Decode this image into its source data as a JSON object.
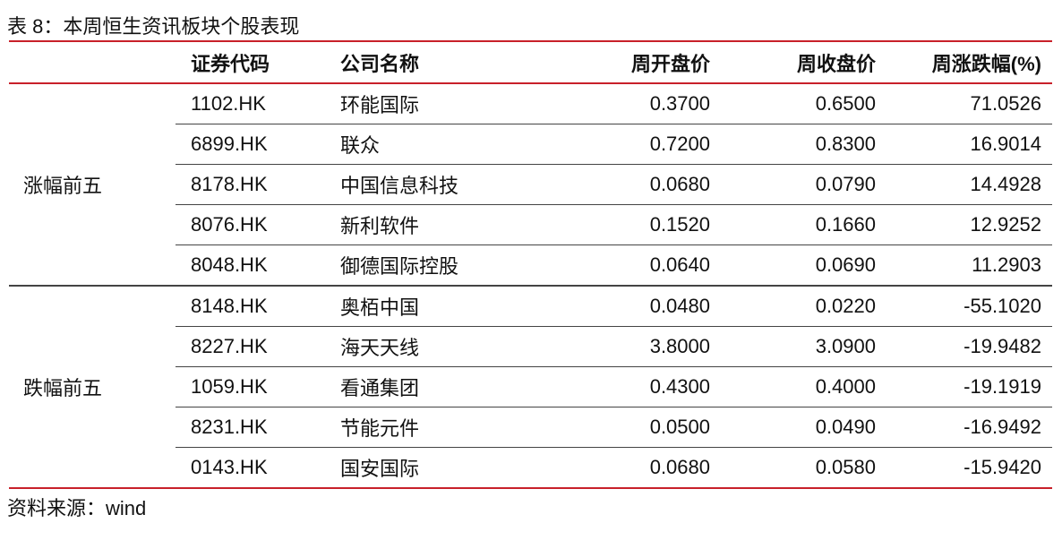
{
  "title": "表 8：本周恒生资讯板块个股表现",
  "headers": [
    "证券代码",
    "公司名称",
    "周开盘价",
    "周收盘价",
    "周涨跌幅(%)"
  ],
  "groups": [
    {
      "label": "涨幅前五",
      "rows": [
        [
          "1102.HK",
          "环能国际",
          "0.3700",
          "0.6500",
          "71.0526"
        ],
        [
          "6899.HK",
          "联众",
          "0.7200",
          "0.8300",
          "16.9014"
        ],
        [
          "8178.HK",
          "中国信息科技",
          "0.0680",
          "0.0790",
          "14.4928"
        ],
        [
          "8076.HK",
          "新利软件",
          "0.1520",
          "0.1660",
          "12.9252"
        ],
        [
          "8048.HK",
          "御德国际控股",
          "0.0640",
          "0.0690",
          "11.2903"
        ]
      ]
    },
    {
      "label": "跌幅前五",
      "rows": [
        [
          "8148.HK",
          "奥栢中国",
          "0.0480",
          "0.0220",
          "-55.1020"
        ],
        [
          "8227.HK",
          "海天天线",
          "3.8000",
          "3.0900",
          "-19.9482"
        ],
        [
          "1059.HK",
          "看通集团",
          "0.4300",
          "0.4000",
          "-19.1919"
        ],
        [
          "8231.HK",
          "节能元件",
          "0.0500",
          "0.0490",
          "-16.9492"
        ],
        [
          "0143.HK",
          "国安国际",
          "0.0680",
          "0.0580",
          "-15.9420"
        ]
      ]
    }
  ],
  "footer": "资料来源：wind",
  "colors": {
    "rule": "#c8202a"
  }
}
